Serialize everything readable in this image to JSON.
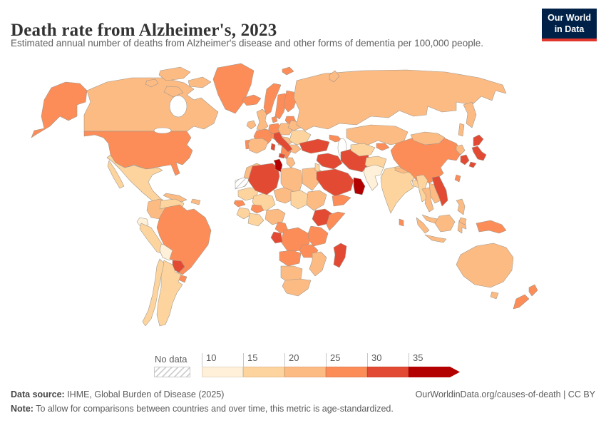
{
  "header": {
    "title": "Death rate from Alzheimer's, 2023",
    "subtitle": "Estimated annual number of deaths from Alzheimer's disease and other forms of dementia per 100,000 people.",
    "logo": {
      "line1": "Our World",
      "line2": "in Data",
      "bg_color": "#002147",
      "accent_color": "#e0362c"
    }
  },
  "footer": {
    "source_label": "Data source:",
    "source_value": " IHME, Global Burden of Disease (2025)",
    "credit": "OurWorldinData.org/causes-of-death | CC BY",
    "note_label": "Note:",
    "note_value": " To allow for comparisons between countries and over time, this metric is age-standardized."
  },
  "chart_data": {
    "type": "choropleth",
    "title": "Death rate from Alzheimer's, 2023",
    "metric": "Estimated annual deaths from Alzheimer's disease and other forms of dementia per 100,000 people (age-standardized)",
    "year": 2023,
    "legend": {
      "no_data_label": "No data",
      "tick_labels": [
        "10",
        "15",
        "20",
        "25",
        "30",
        "35"
      ],
      "bins": [
        {
          "range": "10-15",
          "color": "#fef0d9"
        },
        {
          "range": "15-20",
          "color": "#fdd49e"
        },
        {
          "range": "20-25",
          "color": "#fdbb84"
        },
        {
          "range": "25-30",
          "color": "#fc8d59"
        },
        {
          "range": "30-35",
          "color": "#e34a33"
        },
        {
          "range": "35+",
          "color": "#b30000"
        }
      ],
      "no_data_pattern": "diagonal-hatch"
    },
    "regions": [
      {
        "id": "united-states",
        "name": "United States",
        "bin": "25-30"
      },
      {
        "id": "canada",
        "name": "Canada",
        "bin": "20-25"
      },
      {
        "id": "greenland",
        "name": "Greenland",
        "bin": "25-30"
      },
      {
        "id": "mexico",
        "name": "Mexico",
        "bin": "15-20"
      },
      {
        "id": "guatemala",
        "name": "Guatemala",
        "bin": "15-20"
      },
      {
        "id": "honduras",
        "name": "Honduras",
        "bin": "25-30"
      },
      {
        "id": "nicaragua",
        "name": "Nicaragua",
        "bin": "20-25"
      },
      {
        "id": "panama-costa-rica",
        "name": "Costa Rica & Panama",
        "bin": "20-25"
      },
      {
        "id": "cuba",
        "name": "Cuba",
        "bin": "20-25"
      },
      {
        "id": "hispaniola",
        "name": "Haiti & Dominican Republic",
        "bin": "20-25"
      },
      {
        "id": "colombia",
        "name": "Colombia",
        "bin": "20-25"
      },
      {
        "id": "venezuela",
        "name": "Venezuela",
        "bin": "15-20"
      },
      {
        "id": "guyana",
        "name": "Guyana",
        "bin": "15-20"
      },
      {
        "id": "suriname",
        "name": "Suriname",
        "bin": "10-15"
      },
      {
        "id": "french-guiana",
        "name": "French Guiana",
        "bin": "no-data"
      },
      {
        "id": "ecuador",
        "name": "Ecuador",
        "bin": "10-15"
      },
      {
        "id": "peru",
        "name": "Peru",
        "bin": "15-20"
      },
      {
        "id": "bolivia",
        "name": "Bolivia",
        "bin": "10-15"
      },
      {
        "id": "brazil",
        "name": "Brazil",
        "bin": "25-30"
      },
      {
        "id": "paraguay",
        "name": "Paraguay",
        "bin": "30-35"
      },
      {
        "id": "uruguay",
        "name": "Uruguay",
        "bin": "25-30"
      },
      {
        "id": "argentina",
        "name": "Argentina",
        "bin": "15-20"
      },
      {
        "id": "chile",
        "name": "Chile",
        "bin": "15-20"
      },
      {
        "id": "iceland",
        "name": "Iceland",
        "bin": "25-30"
      },
      {
        "id": "ireland",
        "name": "Ireland",
        "bin": "20-25"
      },
      {
        "id": "united-kingdom",
        "name": "United Kingdom",
        "bin": "20-25"
      },
      {
        "id": "norway",
        "name": "Norway",
        "bin": "25-30"
      },
      {
        "id": "sweden",
        "name": "Sweden",
        "bin": "25-30"
      },
      {
        "id": "finland",
        "name": "Finland",
        "bin": "25-30"
      },
      {
        "id": "baltics",
        "name": "Baltic states",
        "bin": "25-30"
      },
      {
        "id": "denmark",
        "name": "Denmark",
        "bin": "25-30"
      },
      {
        "id": "germany",
        "name": "Germany",
        "bin": "25-30"
      },
      {
        "id": "france",
        "name": "France",
        "bin": "25-30"
      },
      {
        "id": "portugal",
        "name": "Portugal",
        "bin": "25-30"
      },
      {
        "id": "spain",
        "name": "Spain",
        "bin": "20-25"
      },
      {
        "id": "italy",
        "name": "Italy",
        "bin": "30-35"
      },
      {
        "id": "switzerland-austria",
        "name": "Switzerland & Austria",
        "bin": "25-30"
      },
      {
        "id": "poland",
        "name": "Poland",
        "bin": "20-25"
      },
      {
        "id": "czech-hungary",
        "name": "Czechia & Hungary",
        "bin": "20-25"
      },
      {
        "id": "belarus",
        "name": "Belarus",
        "bin": "20-25"
      },
      {
        "id": "ukraine",
        "name": "Ukraine",
        "bin": "15-20"
      },
      {
        "id": "romania",
        "name": "Romania",
        "bin": "20-25"
      },
      {
        "id": "balkans",
        "name": "Balkans",
        "bin": "25-30"
      },
      {
        "id": "greece",
        "name": "Greece",
        "bin": "20-25"
      },
      {
        "id": "russia",
        "name": "Russia",
        "bin": "20-25"
      },
      {
        "id": "svalbard",
        "name": "Svalbard",
        "bin": "25-30"
      },
      {
        "id": "turkey",
        "name": "Turkey",
        "bin": "30-35"
      },
      {
        "id": "caucasus",
        "name": "Caucasus",
        "bin": "25-30"
      },
      {
        "id": "syria-iraq",
        "name": "Syria & Iraq",
        "bin": "30-35"
      },
      {
        "id": "israel-jordan",
        "name": "Israel & Jordan",
        "bin": "15-20"
      },
      {
        "id": "saudi-arabia",
        "name": "Saudi Arabia",
        "bin": "30-35"
      },
      {
        "id": "oman",
        "name": "Oman",
        "bin": "35+"
      },
      {
        "id": "yemen",
        "name": "Yemen",
        "bin": "25-30"
      },
      {
        "id": "iran",
        "name": "Iran",
        "bin": "30-35"
      },
      {
        "id": "morocco",
        "name": "Morocco",
        "bin": "20-25"
      },
      {
        "id": "western-sahara",
        "name": "Western Sahara",
        "bin": "no-data"
      },
      {
        "id": "algeria",
        "name": "Algeria",
        "bin": "30-35"
      },
      {
        "id": "tunisia",
        "name": "Tunisia",
        "bin": "35+"
      },
      {
        "id": "libya",
        "name": "Libya",
        "bin": "20-25"
      },
      {
        "id": "egypt",
        "name": "Egypt",
        "bin": "20-25"
      },
      {
        "id": "mauritania",
        "name": "Mauritania",
        "bin": "15-20"
      },
      {
        "id": "mali",
        "name": "Mali",
        "bin": "15-20"
      },
      {
        "id": "senegal",
        "name": "Senegal",
        "bin": "25-30"
      },
      {
        "id": "guinea-region",
        "name": "Guinea region",
        "bin": "15-20"
      },
      {
        "id": "burkina-faso",
        "name": "Burkina Faso",
        "bin": "25-30"
      },
      {
        "id": "ivory-ghana",
        "name": "Côte d'Ivoire & Ghana",
        "bin": "15-20"
      },
      {
        "id": "nigeria",
        "name": "Nigeria",
        "bin": "20-25"
      },
      {
        "id": "niger",
        "name": "Niger",
        "bin": "20-25"
      },
      {
        "id": "chad",
        "name": "Chad",
        "bin": "15-20"
      },
      {
        "id": "sudan",
        "name": "Sudan",
        "bin": "20-25"
      },
      {
        "id": "ethiopia",
        "name": "Ethiopia",
        "bin": "30-35"
      },
      {
        "id": "somalia",
        "name": "Somalia",
        "bin": "25-30"
      },
      {
        "id": "kenya-tanzania",
        "name": "Kenya & Tanzania",
        "bin": "25-30"
      },
      {
        "id": "cameroon",
        "name": "Cameroon",
        "bin": "25-30"
      },
      {
        "id": "gabon",
        "name": "Gabon",
        "bin": "30-35"
      },
      {
        "id": "dr-congo",
        "name": "Democratic Republic of Congo",
        "bin": "25-30"
      },
      {
        "id": "angola",
        "name": "Angola",
        "bin": "25-30"
      },
      {
        "id": "zambia",
        "name": "Zambia",
        "bin": "25-30"
      },
      {
        "id": "mozambique-zimbabwe",
        "name": "Mozambique & Zimbabwe",
        "bin": "20-25"
      },
      {
        "id": "namibia-botswana",
        "name": "Namibia & Botswana",
        "bin": "20-25"
      },
      {
        "id": "south-africa",
        "name": "South Africa",
        "bin": "20-25"
      },
      {
        "id": "madagascar",
        "name": "Madagascar",
        "bin": "30-35"
      },
      {
        "id": "kazakhstan",
        "name": "Kazakhstan",
        "bin": "20-25"
      },
      {
        "id": "central-asia",
        "name": "Uzbekistan & Turkmenistan",
        "bin": "15-20"
      },
      {
        "id": "kyrgyz-tajik",
        "name": "Kyrgyzstan & Tajikistan",
        "bin": "25-30"
      },
      {
        "id": "afghanistan",
        "name": "Afghanistan",
        "bin": "15-20"
      },
      {
        "id": "pakistan",
        "name": "Pakistan",
        "bin": "10-15"
      },
      {
        "id": "india",
        "name": "India",
        "bin": "15-20"
      },
      {
        "id": "nepal",
        "name": "Nepal",
        "bin": "20-25"
      },
      {
        "id": "bangladesh",
        "name": "Bangladesh",
        "bin": "15-20"
      },
      {
        "id": "sri-lanka",
        "name": "Sri Lanka",
        "bin": "25-30"
      },
      {
        "id": "myanmar",
        "name": "Myanmar",
        "bin": "15-20"
      },
      {
        "id": "thailand",
        "name": "Thailand",
        "bin": "20-25"
      },
      {
        "id": "laos-cambodia",
        "name": "Laos & Cambodia",
        "bin": "20-25"
      },
      {
        "id": "vietnam",
        "name": "Vietnam",
        "bin": "30-35"
      },
      {
        "id": "malaysia",
        "name": "Malaysia",
        "bin": "20-25"
      },
      {
        "id": "indonesia",
        "name": "Indonesia",
        "bin": "20-25"
      },
      {
        "id": "philippines",
        "name": "Philippines",
        "bin": "20-25"
      },
      {
        "id": "china",
        "name": "China",
        "bin": "25-30"
      },
      {
        "id": "mongolia",
        "name": "Mongolia",
        "bin": "20-25"
      },
      {
        "id": "north-korea",
        "name": "North Korea",
        "bin": "20-25"
      },
      {
        "id": "south-korea",
        "name": "South Korea",
        "bin": "30-35"
      },
      {
        "id": "japan",
        "name": "Japan",
        "bin": "30-35"
      },
      {
        "id": "taiwan",
        "name": "Taiwan",
        "bin": "25-30"
      },
      {
        "id": "papua-new-guinea",
        "name": "Papua New Guinea",
        "bin": "25-30"
      },
      {
        "id": "australia",
        "name": "Australia",
        "bin": "20-25"
      },
      {
        "id": "new-zealand",
        "name": "New Zealand",
        "bin": "25-30"
      }
    ]
  }
}
